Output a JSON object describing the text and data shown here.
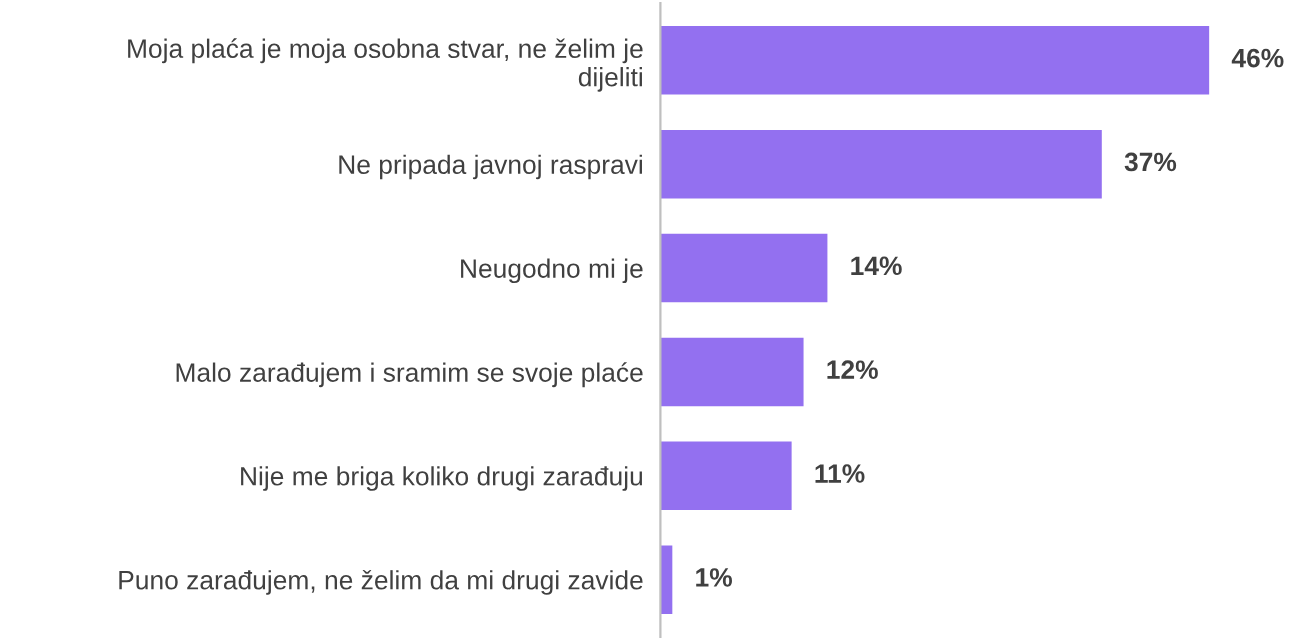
{
  "chart_data": {
    "type": "bar",
    "orientation": "horizontal",
    "categories": [
      "Moja plaća je moja osobna stvar, ne želim je\ndijeliti",
      "Ne pripada javnoj raspravi",
      "Neugodno mi je",
      "Malo zarađujem i sramim se svoje plaće",
      "Nije me briga koliko drugi zarađuju",
      "Puno zarađujem, ne želim da mi drugi zavide"
    ],
    "values": [
      46,
      37,
      14,
      12,
      11,
      1
    ],
    "value_labels": [
      "46%",
      "37%",
      "14%",
      "12%",
      "11%",
      "1%"
    ],
    "color": "#9370f0",
    "tick_labels": "y",
    "grid": false,
    "legend": false
  }
}
